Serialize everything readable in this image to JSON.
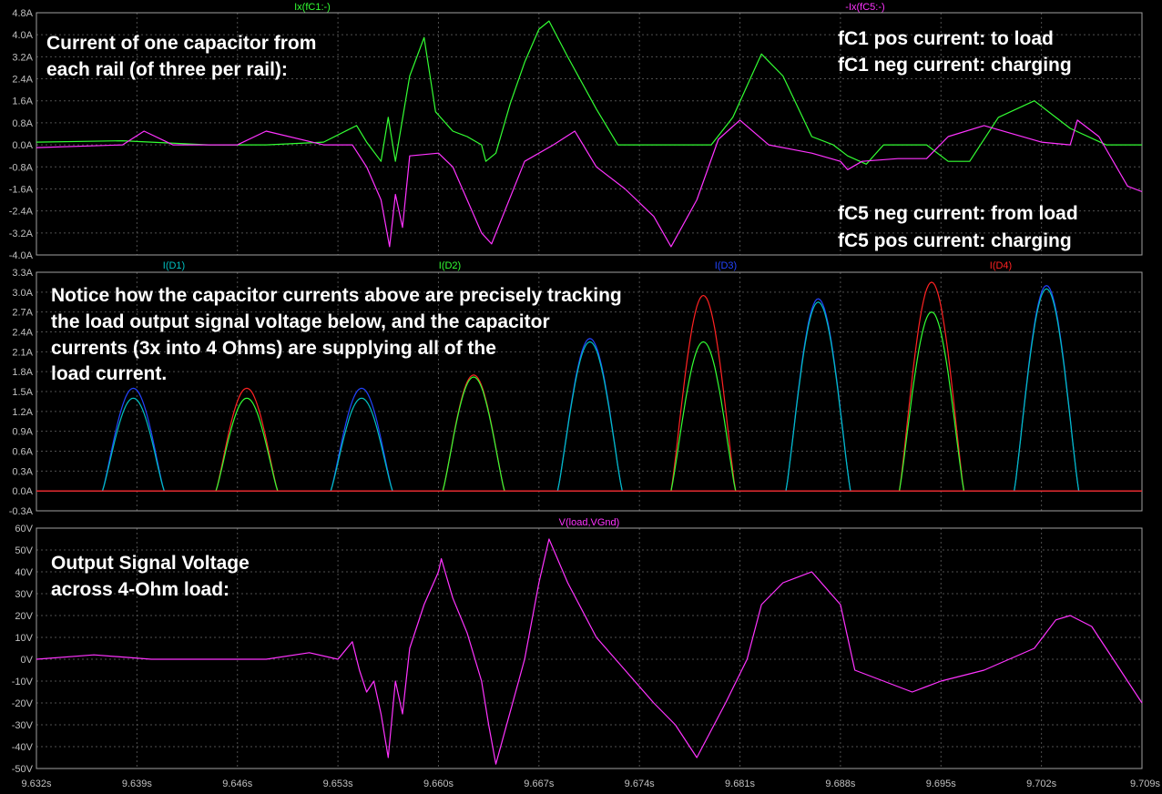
{
  "colors": {
    "background": "#000000",
    "frame": "#a0a0a0",
    "grid": "#505050",
    "green": "#33ff33",
    "magenta": "#ff33ff",
    "cyan": "#00c0c0",
    "blue": "#2244ff",
    "red": "#ff2222"
  },
  "x_axis": {
    "range": [
      9.632,
      9.709
    ],
    "ticks": [
      9.632,
      9.639,
      9.646,
      9.653,
      9.66,
      9.667,
      9.674,
      9.681,
      9.688,
      9.695,
      9.702,
      9.709
    ],
    "tick_labels": [
      "9.632s",
      "9.639s",
      "9.646s",
      "9.653s",
      "9.660s",
      "9.667s",
      "9.674s",
      "9.681s",
      "9.688s",
      "9.695s",
      "9.702s",
      "9.709s"
    ]
  },
  "panels": {
    "top": {
      "trace_labels": [
        "Ix(fC1:-)",
        "-Ix(fC5:-)"
      ],
      "annotations": {
        "title_line1": "Current of one capacitor from",
        "title_line2": "each rail (of three per rail):",
        "pos1": "fC1 pos current:  to load",
        "pos2": "fC1 neg current:  charging",
        "neg1": "fC5 neg current:  from load",
        "neg2": "fC5 pos current:  charging"
      }
    },
    "middle": {
      "trace_labels": [
        "I(D1)",
        "I(D2)",
        "I(D3)",
        "I(D4)"
      ],
      "annotations": {
        "l1": "Notice how the capacitor currents above are precisely tracking",
        "l2": "the load output signal voltage below, and the capacitor",
        "l3": "currents (3x into 4 Ohms) are supplying all of the",
        "l4": "load current."
      }
    },
    "bottom": {
      "trace_labels": [
        "V(load,VGnd)"
      ],
      "annotations": {
        "l1": "Output Signal Voltage",
        "l2": "across 4-Ohm load:"
      }
    }
  },
  "chart_data": [
    {
      "type": "line",
      "title": "",
      "xlabel": "",
      "ylabel": "",
      "ylim": [
        -4.0,
        4.8
      ],
      "yticks": [
        -4.0,
        -3.2,
        -2.4,
        -1.6,
        -0.8,
        0.0,
        0.8,
        1.6,
        2.4,
        3.2,
        4.0,
        4.8
      ],
      "ytick_labels": [
        "-4.0A",
        "-3.2A",
        "-2.4A",
        "-1.6A",
        "-0.8A",
        "0.0A",
        "0.8A",
        "1.6A",
        "2.4A",
        "3.2A",
        "4.0A",
        "4.8A"
      ],
      "grid": true,
      "series": [
        {
          "name": "Ix(fC1:-)",
          "color": "green",
          "x": [
            9.632,
            9.638,
            9.644,
            9.648,
            9.652,
            9.6543,
            9.655,
            9.656,
            9.6565,
            9.657,
            9.658,
            9.659,
            9.6598,
            9.661,
            9.662,
            9.663,
            9.6633,
            9.664,
            9.665,
            9.666,
            9.667,
            9.6677,
            9.669,
            9.671,
            9.6725,
            9.674,
            9.677,
            9.679,
            9.6805,
            9.6818,
            9.6825,
            9.684,
            9.686,
            9.6875,
            9.6885,
            9.6898,
            9.691,
            9.694,
            9.6955,
            9.697,
            9.699,
            9.7015,
            9.703,
            9.704,
            9.7065,
            9.709
          ],
          "y": [
            0.1,
            0.15,
            0.0,
            0.0,
            0.1,
            0.7,
            0.1,
            -0.6,
            1.0,
            -0.6,
            2.5,
            3.9,
            1.2,
            0.5,
            0.3,
            0.0,
            -0.6,
            -0.3,
            1.5,
            3.0,
            4.2,
            4.5,
            3.2,
            1.3,
            0.0,
            0.0,
            0.0,
            0.0,
            1.0,
            2.5,
            3.3,
            2.5,
            0.3,
            0.0,
            -0.4,
            -0.7,
            0.0,
            0.0,
            -0.6,
            -0.6,
            1.0,
            1.6,
            1.0,
            0.6,
            0.0,
            0.0
          ]
        },
        {
          "name": "-Ix(fC5:-)",
          "color": "magenta",
          "x": [
            9.632,
            9.638,
            9.6395,
            9.6415,
            9.646,
            9.648,
            9.652,
            9.654,
            9.655,
            9.656,
            9.6566,
            9.657,
            9.6575,
            9.658,
            9.66,
            9.661,
            9.662,
            9.663,
            9.6637,
            9.666,
            9.668,
            9.6695,
            9.671,
            9.673,
            9.675,
            9.6762,
            9.678,
            9.6795,
            9.681,
            9.683,
            9.686,
            9.688,
            9.6885,
            9.6895,
            9.692,
            9.694,
            9.6955,
            9.698,
            9.702,
            9.704,
            9.7045,
            9.706,
            9.708,
            9.709
          ],
          "y": [
            -0.1,
            0.0,
            0.5,
            0.0,
            0.0,
            0.5,
            0.0,
            0.0,
            -0.8,
            -2.0,
            -3.7,
            -1.8,
            -3.0,
            -0.4,
            -0.3,
            -0.8,
            -2.0,
            -3.2,
            -3.6,
            -0.6,
            0.0,
            0.5,
            -0.8,
            -1.6,
            -2.6,
            -3.7,
            -2.0,
            0.2,
            0.9,
            0.0,
            -0.3,
            -0.6,
            -0.9,
            -0.6,
            -0.5,
            -0.5,
            0.3,
            0.7,
            0.1,
            0.0,
            0.9,
            0.3,
            -1.5,
            -1.7
          ]
        }
      ]
    },
    {
      "type": "line",
      "title": "",
      "xlabel": "",
      "ylabel": "",
      "ylim": [
        -0.3,
        3.3
      ],
      "yticks": [
        -0.3,
        0.0,
        0.3,
        0.6,
        0.9,
        1.2,
        1.5,
        1.8,
        2.1,
        2.4,
        2.7,
        3.0,
        3.3
      ],
      "ytick_labels": [
        "-0.3A",
        "0.0A",
        "0.3A",
        "0.6A",
        "0.9A",
        "1.2A",
        "1.5A",
        "1.8A",
        "2.1A",
        "2.4A",
        "2.7A",
        "3.0A",
        "3.3A"
      ],
      "grid": true,
      "pulses": [
        {
          "series": "I(D3)",
          "start": 9.6366,
          "end": 9.6409,
          "peak": 1.55
        },
        {
          "series": "I(D1)",
          "start": 9.6366,
          "end": 9.6409,
          "peak": 1.4
        },
        {
          "series": "I(D4)",
          "start": 9.6445,
          "end": 9.6488,
          "peak": 1.55
        },
        {
          "series": "I(D2)",
          "start": 9.6445,
          "end": 9.6488,
          "peak": 1.4
        },
        {
          "series": "I(D3)",
          "start": 9.6525,
          "end": 9.6568,
          "peak": 1.55
        },
        {
          "series": "I(D1)",
          "start": 9.6525,
          "end": 9.6568,
          "peak": 1.4
        },
        {
          "series": "I(D4)",
          "start": 9.6603,
          "end": 9.6646,
          "peak": 1.75
        },
        {
          "series": "I(D2)",
          "start": 9.6603,
          "end": 9.6646,
          "peak": 1.72
        },
        {
          "series": "I(D3)",
          "start": 9.6683,
          "end": 9.6728,
          "peak": 2.3
        },
        {
          "series": "I(D1)",
          "start": 9.6683,
          "end": 9.6728,
          "peak": 2.25
        },
        {
          "series": "I(D4)",
          "start": 9.6762,
          "end": 9.6807,
          "peak": 2.95
        },
        {
          "series": "I(D2)",
          "start": 9.6762,
          "end": 9.6807,
          "peak": 2.25
        },
        {
          "series": "I(D3)",
          "start": 9.6842,
          "end": 9.6887,
          "peak": 2.9
        },
        {
          "series": "I(D1)",
          "start": 9.6842,
          "end": 9.6887,
          "peak": 2.85
        },
        {
          "series": "I(D4)",
          "start": 9.6921,
          "end": 9.6966,
          "peak": 3.15
        },
        {
          "series": "I(D2)",
          "start": 9.6921,
          "end": 9.6966,
          "peak": 2.7
        },
        {
          "series": "I(D3)",
          "start": 9.7001,
          "end": 9.7046,
          "peak": 3.1
        },
        {
          "series": "I(D1)",
          "start": 9.7001,
          "end": 9.7046,
          "peak": 3.05
        }
      ],
      "series_colors": {
        "I(D1)": "cyan",
        "I(D2)": "green",
        "I(D3)": "blue",
        "I(D4)": "red"
      }
    },
    {
      "type": "line",
      "title": "",
      "xlabel": "",
      "ylabel": "",
      "ylim": [
        -50,
        60
      ],
      "yticks": [
        -50,
        -40,
        -30,
        -20,
        -10,
        0,
        10,
        20,
        30,
        40,
        50,
        60
      ],
      "ytick_labels": [
        "-50V",
        "-40V",
        "-30V",
        "-20V",
        "-10V",
        "0V",
        "10V",
        "20V",
        "30V",
        "40V",
        "50V",
        "60V"
      ],
      "grid": true,
      "series": [
        {
          "name": "V(load,VGnd)",
          "color": "magenta",
          "x": [
            9.632,
            9.636,
            9.64,
            9.644,
            9.648,
            9.651,
            9.653,
            9.654,
            9.6545,
            9.655,
            9.6555,
            9.656,
            9.6565,
            9.657,
            9.6575,
            9.658,
            9.659,
            9.66,
            9.6602,
            9.661,
            9.662,
            9.663,
            9.6635,
            9.664,
            9.666,
            9.667,
            9.6677,
            9.669,
            9.671,
            9.673,
            9.675,
            9.6765,
            9.678,
            9.68,
            9.6815,
            9.6825,
            9.684,
            9.686,
            9.688,
            9.689,
            9.691,
            9.693,
            9.695,
            9.698,
            9.7015,
            9.703,
            9.704,
            9.7055,
            9.707,
            9.708,
            9.709
          ],
          "y": [
            0,
            2,
            0,
            0,
            0,
            3,
            0,
            8,
            -5,
            -15,
            -10,
            -25,
            -45,
            -10,
            -25,
            5,
            25,
            40,
            46,
            28,
            12,
            -10,
            -30,
            -48,
            0,
            35,
            55,
            35,
            10,
            -5,
            -20,
            -30,
            -45,
            -20,
            0,
            25,
            35,
            40,
            25,
            -5,
            -10,
            -15,
            -10,
            -5,
            5,
            18,
            20,
            15,
            0,
            -10,
            -20
          ]
        }
      ]
    }
  ]
}
